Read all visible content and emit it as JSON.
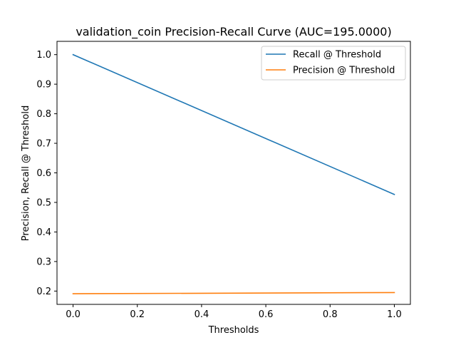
{
  "chart_data": {
    "type": "line",
    "title": "validation_coin Precision-Recall Curve (AUC=195.0000)",
    "xlabel": "Thresholds",
    "ylabel": "Precision, Recall @ Threshold",
    "xlim": [
      -0.05,
      1.05
    ],
    "ylim": [
      0.155,
      1.045
    ],
    "xticks": [
      0.0,
      0.2,
      0.4,
      0.6,
      0.8,
      1.0
    ],
    "xtick_labels": [
      "0.0",
      "0.2",
      "0.4",
      "0.6",
      "0.8",
      "1.0"
    ],
    "yticks": [
      0.2,
      0.3,
      0.4,
      0.5,
      0.6,
      0.7,
      0.8,
      0.9,
      1.0
    ],
    "ytick_labels": [
      "0.2",
      "0.3",
      "0.4",
      "0.5",
      "0.6",
      "0.7",
      "0.8",
      "0.9",
      "1.0"
    ],
    "grid": false,
    "legend_position": "top-right",
    "series": [
      {
        "name": "Recall @ Threshold",
        "color": "#1f77b4",
        "x": [
          0.0,
          1.0
        ],
        "y": [
          1.0,
          0.527
        ]
      },
      {
        "name": "Precision @ Threshold",
        "color": "#ff7f0e",
        "x": [
          0.0,
          1.0
        ],
        "y": [
          0.191,
          0.195
        ]
      }
    ]
  }
}
